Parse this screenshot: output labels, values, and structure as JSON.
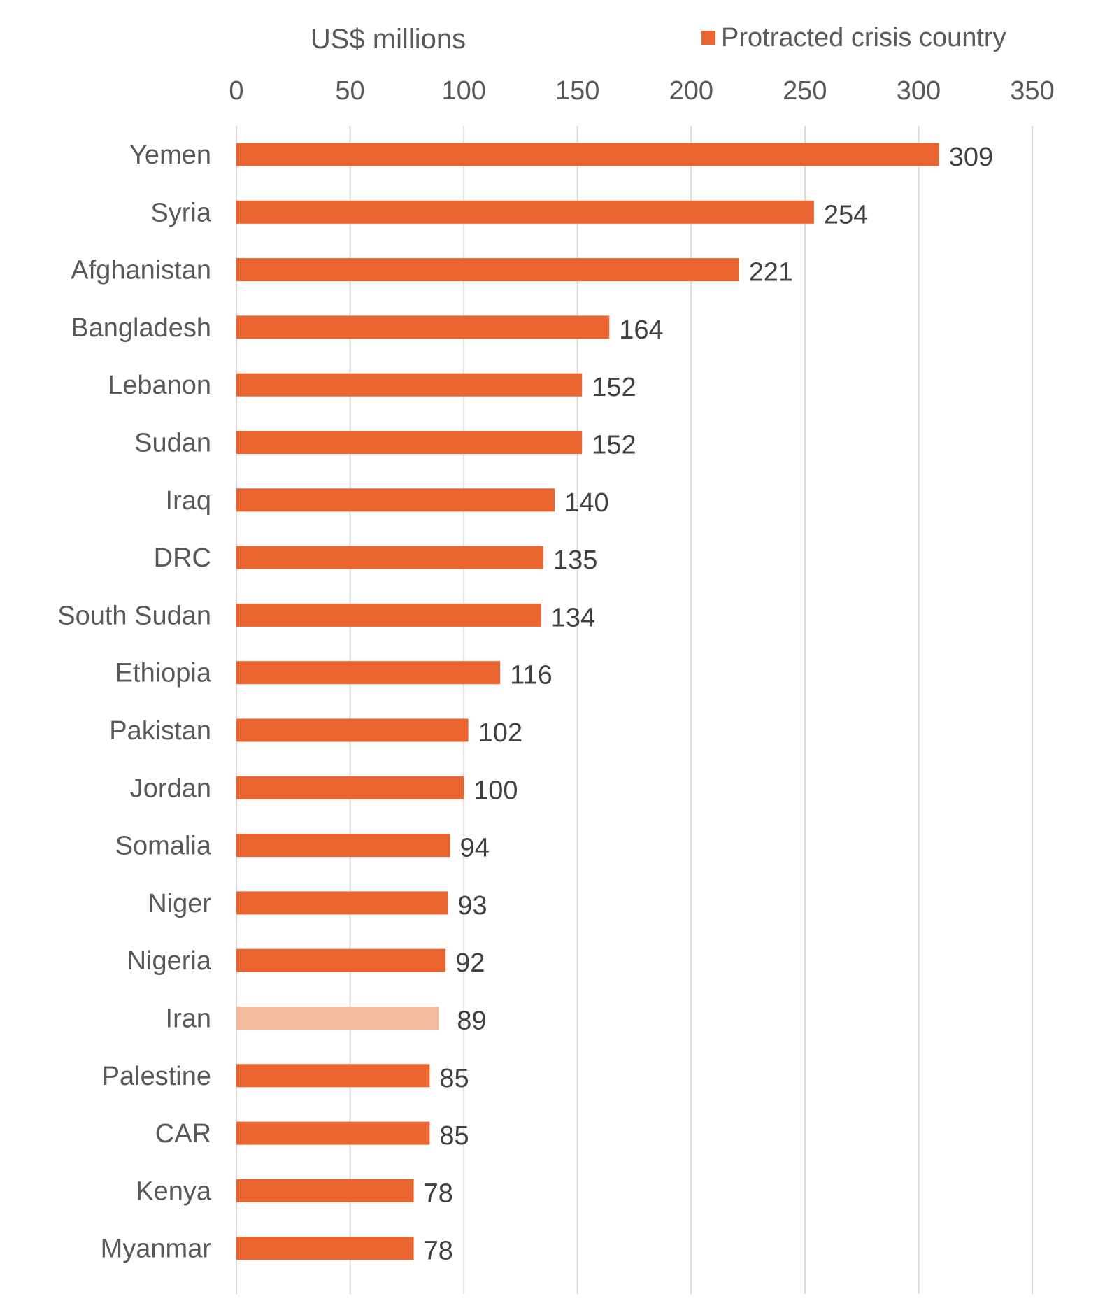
{
  "chart_data": {
    "type": "bar",
    "orientation": "horizontal",
    "xlabel": "US$ millions",
    "xlim": [
      0,
      350
    ],
    "x_ticks": [
      0,
      50,
      100,
      150,
      200,
      250,
      300,
      350
    ],
    "x_tick_labels": [
      "0",
      "50",
      "100",
      "150",
      "200",
      "250",
      "300",
      "350"
    ],
    "grid": true,
    "legend_position": "top-right",
    "legend": [
      {
        "label": "Protracted crisis country",
        "color": "#EA6430"
      }
    ],
    "categories": [
      "Yemen",
      "Syria",
      "Afghanistan",
      "Bangladesh",
      "Lebanon",
      "Sudan",
      "Iraq",
      "DRC",
      "South Sudan",
      "Ethiopia",
      "Pakistan",
      "Jordan",
      "Somalia",
      "Niger",
      "Nigeria",
      "Iran",
      "Palestine",
      "CAR",
      "Kenya",
      "Myanmar"
    ],
    "values": [
      309,
      254,
      221,
      164,
      152,
      152,
      140,
      135,
      134,
      116,
      102,
      100,
      94,
      93,
      92,
      89,
      85,
      85,
      78,
      78
    ],
    "data_labels": [
      "309",
      "254",
      "221",
      "164",
      "152",
      "152",
      "140",
      "135",
      "134",
      "116",
      "102",
      "100",
      "94",
      "93",
      "92",
      "89",
      "85",
      "85",
      "78",
      "78"
    ],
    "protracted_crisis": [
      true,
      true,
      true,
      true,
      true,
      true,
      true,
      true,
      true,
      true,
      true,
      true,
      true,
      true,
      true,
      false,
      true,
      true,
      true,
      true
    ],
    "colors": {
      "protracted": "#EA6430",
      "other": "#F5BB9E",
      "gridline": "#D9D9D9",
      "text": "#595959"
    }
  }
}
